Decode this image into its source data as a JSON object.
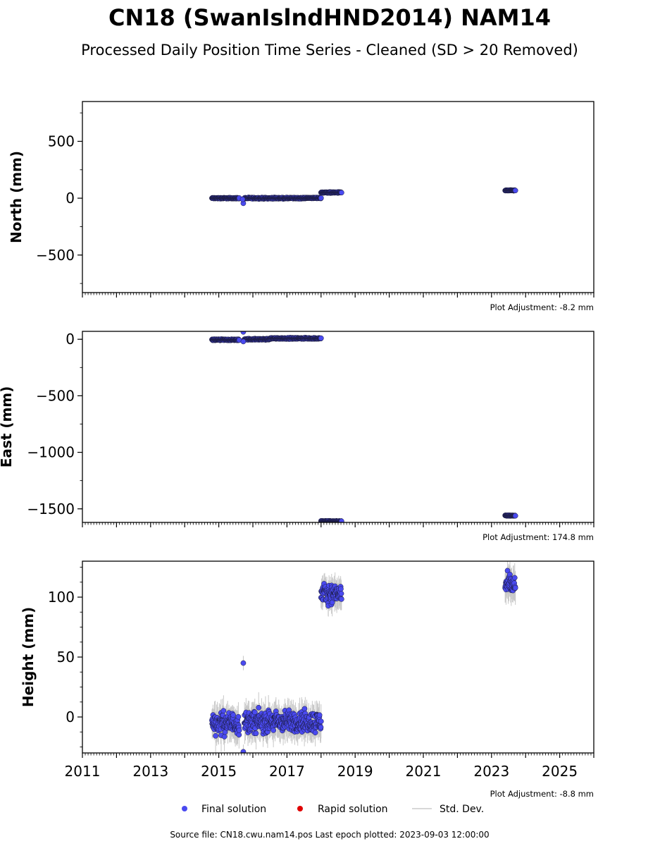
{
  "title": "CN18 (SwanIslndHND2014) NAM14",
  "subtitle": "Processed Daily Position Time Series - Cleaned (SD > 20 Removed)",
  "footer": "Source file: CN18.cwu.nam14.pos  Last epoch plotted: 2023-09-03 12:00:00",
  "legend": [
    {
      "label": "Final solution",
      "color": "#4a4af0",
      "kind": "dot"
    },
    {
      "label": "Rapid solution",
      "color": "#e00000",
      "kind": "dot"
    },
    {
      "label": "Std. Dev.",
      "color": "#cccccc",
      "kind": "line"
    }
  ],
  "colors": {
    "final": "#4a4af0",
    "final_edge": "#1a1a3a",
    "stddev": "#c8c8c8"
  },
  "chart_data": [
    {
      "type": "scatter",
      "ylabel": "North (mm)",
      "adjustment": "Plot Adjustment: -8.2 mm",
      "xlim": [
        2011,
        2026
      ],
      "ylim": [
        -830,
        850
      ],
      "yticks": [
        500,
        0,
        -500
      ],
      "yticklabels": [
        "500",
        "0",
        "−500"
      ],
      "segments": [
        {
          "x0": 2014.8,
          "x1": 2015.6,
          "y": 0,
          "spread": 4
        },
        {
          "x0": 2015.75,
          "x1": 2017.5,
          "y": 0,
          "spread": 5
        },
        {
          "x0": 2017.5,
          "x1": 2018.0,
          "y": 2,
          "spread": 4
        },
        {
          "x0": 2018.0,
          "x1": 2018.6,
          "y": 50,
          "spread": 4
        },
        {
          "x0": 2023.4,
          "x1": 2023.7,
          "y": 68,
          "spread": 3
        }
      ],
      "outliers": [
        {
          "x": 2015.72,
          "y": -45
        },
        {
          "x": 2015.7,
          "y": -10
        }
      ]
    },
    {
      "type": "scatter",
      "ylabel": "East (mm)",
      "adjustment": "Plot Adjustment: 174.8 mm",
      "xlim": [
        2011,
        2026
      ],
      "ylim": [
        -1620,
        70
      ],
      "yticks": [
        0,
        -500,
        -1000,
        -1500
      ],
      "yticklabels": [
        "0",
        "−500",
        "−1000",
        "−1500"
      ],
      "segments": [
        {
          "x0": 2014.8,
          "x1": 2015.6,
          "y": -5,
          "spread": 5
        },
        {
          "x0": 2015.75,
          "x1": 2016.5,
          "y": 0,
          "spread": 5
        },
        {
          "x0": 2016.5,
          "x1": 2018.0,
          "y": 8,
          "spread": 5
        },
        {
          "x0": 2018.0,
          "x1": 2018.6,
          "y": -1610,
          "spread": 4
        },
        {
          "x0": 2023.4,
          "x1": 2023.7,
          "y": -1560,
          "spread": 3
        }
      ],
      "outliers": [
        {
          "x": 2015.72,
          "y": 65
        },
        {
          "x": 2015.72,
          "y": -20
        }
      ]
    },
    {
      "type": "scatter",
      "ylabel": "Height (mm)",
      "adjustment": "Plot Adjustment: -8.8 mm",
      "xlim": [
        2011,
        2026
      ],
      "ylim": [
        -30,
        130
      ],
      "yticks": [
        100,
        50,
        0
      ],
      "yticklabels": [
        "100",
        "50",
        "0"
      ],
      "xticks": [
        2011,
        2013,
        2015,
        2017,
        2019,
        2021,
        2023,
        2025
      ],
      "xticklabels": [
        "2011",
        "2013",
        "2015",
        "2017",
        "2019",
        "2021",
        "2023",
        "2025"
      ],
      "segments": [
        {
          "x0": 2014.8,
          "x1": 2015.6,
          "y": -5,
          "spread": 8
        },
        {
          "x0": 2015.75,
          "x1": 2018.0,
          "y": -4,
          "spread": 8
        },
        {
          "x0": 2018.0,
          "x1": 2018.6,
          "y": 103,
          "spread": 7
        },
        {
          "x0": 2023.4,
          "x1": 2023.7,
          "y": 110,
          "spread": 8
        }
      ],
      "outliers": [
        {
          "x": 2015.72,
          "y": 45
        },
        {
          "x": 2015.72,
          "y": -29
        }
      ]
    }
  ]
}
